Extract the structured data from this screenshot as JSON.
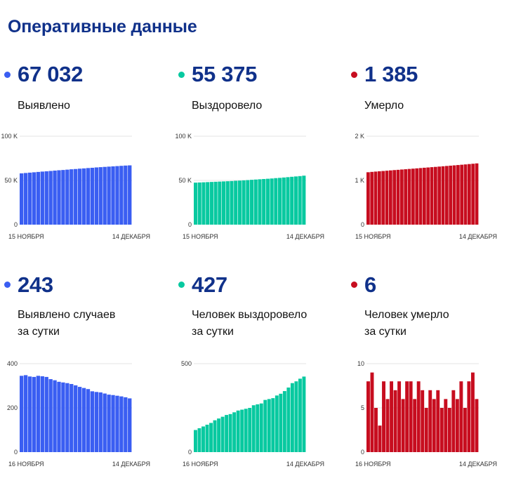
{
  "page": {
    "title": "Оперативные данные"
  },
  "colors": {
    "blue": "#3a5ef2",
    "green": "#08c9a0",
    "red": "#c70d1f",
    "title": "#10318a"
  },
  "panels": [
    {
      "id": "detected",
      "value": "67 032",
      "label1": "Выявлено",
      "label2": ""
    },
    {
      "id": "recovered",
      "value": "55 375",
      "label1": "Выздоровело",
      "label2": ""
    },
    {
      "id": "died",
      "value": "1 385",
      "label1": "Умерло",
      "label2": ""
    },
    {
      "id": "detected_daily",
      "value": "243",
      "label1": "Выявлено случаев",
      "label2": "за сутки"
    },
    {
      "id": "recovered_daily",
      "value": "427",
      "label1": "Человек выздоровело",
      "label2": "за сутки"
    },
    {
      "id": "died_daily",
      "value": "6",
      "label1": "Человек умерло",
      "label2": "за сутки"
    }
  ],
  "chart_data": [
    {
      "type": "bar",
      "color": "#3a5ef2",
      "ylim": [
        0,
        100000
      ],
      "yticks": [
        0,
        50000,
        100000
      ],
      "ytick_labels": [
        "0",
        "50 K",
        "100 K"
      ],
      "xtick_labels": [
        "15 НОЯБРЯ",
        "14 ДЕКАБРЯ"
      ],
      "values": [
        58000,
        58400,
        58800,
        59200,
        59600,
        60000,
        60300,
        60700,
        61100,
        61500,
        61800,
        62200,
        62600,
        62900,
        63300,
        63600,
        64000,
        64300,
        64700,
        65000,
        65300,
        65600,
        65900,
        66200,
        66500,
        66800,
        67032
      ]
    },
    {
      "type": "bar",
      "color": "#08c9a0",
      "ylim": [
        0,
        100000
      ],
      "yticks": [
        0,
        50000,
        100000
      ],
      "ytick_labels": [
        "0",
        "50 K",
        "100 K"
      ],
      "xtick_labels": [
        "15 НОЯБРЯ",
        "14 ДЕКАБРЯ"
      ],
      "values": [
        47500,
        47700,
        47900,
        48100,
        48300,
        48500,
        48700,
        48900,
        49100,
        49300,
        49600,
        49800,
        50100,
        50400,
        50700,
        51000,
        51300,
        51600,
        51900,
        52200,
        52600,
        52900,
        53300,
        53700,
        54100,
        54500,
        54900,
        55375
      ]
    },
    {
      "type": "bar",
      "color": "#c70d1f",
      "ylim": [
        0,
        2000
      ],
      "yticks": [
        0,
        1000,
        2000
      ],
      "ytick_labels": [
        "0",
        "1 K",
        "2 K"
      ],
      "xtick_labels": [
        "15 НОЯБРЯ",
        "14 ДЕКАБРЯ"
      ],
      "values": [
        1185,
        1193,
        1200,
        1207,
        1213,
        1220,
        1227,
        1234,
        1240,
        1247,
        1253,
        1260,
        1266,
        1273,
        1280,
        1287,
        1293,
        1300,
        1306,
        1313,
        1320,
        1327,
        1334,
        1341,
        1348,
        1355,
        1362,
        1370,
        1377,
        1385
      ]
    },
    {
      "type": "bar",
      "color": "#3a5ef2",
      "ylim": [
        0,
        400
      ],
      "yticks": [
        0,
        200,
        400
      ],
      "ytick_labels": [
        "0",
        "200",
        "400"
      ],
      "xtick_labels": [
        "16 НОЯБРЯ",
        "14 ДЕКАБРЯ"
      ],
      "values": [
        345,
        348,
        342,
        340,
        345,
        343,
        340,
        330,
        325,
        318,
        315,
        312,
        308,
        302,
        295,
        290,
        285,
        275,
        272,
        270,
        265,
        260,
        258,
        255,
        252,
        248,
        243
      ]
    },
    {
      "type": "bar",
      "color": "#08c9a0",
      "ylim": [
        0,
        500
      ],
      "yticks": [
        0,
        500
      ],
      "ytick_labels": [
        "0",
        "500"
      ],
      "xtick_labels": [
        "16 НОЯБРЯ",
        "14 ДЕКАБРЯ"
      ],
      "values": [
        125,
        135,
        145,
        155,
        165,
        180,
        190,
        200,
        210,
        215,
        225,
        235,
        240,
        245,
        250,
        265,
        270,
        275,
        295,
        300,
        305,
        320,
        330,
        345,
        365,
        390,
        400,
        415,
        427
      ]
    },
    {
      "type": "bar",
      "color": "#c70d1f",
      "ylim": [
        0,
        10
      ],
      "yticks": [
        0,
        5,
        10
      ],
      "ytick_labels": [
        "0",
        "5",
        "10"
      ],
      "xtick_labels": [
        "16 НОЯБРЯ",
        "14 ДЕКАБРЯ"
      ],
      "values": [
        8,
        9,
        5,
        3,
        8,
        6,
        8,
        7,
        8,
        6,
        8,
        8,
        6,
        8,
        7,
        5,
        7,
        6,
        7,
        5,
        6,
        5,
        7,
        6,
        8,
        5,
        8,
        9,
        6
      ]
    }
  ]
}
